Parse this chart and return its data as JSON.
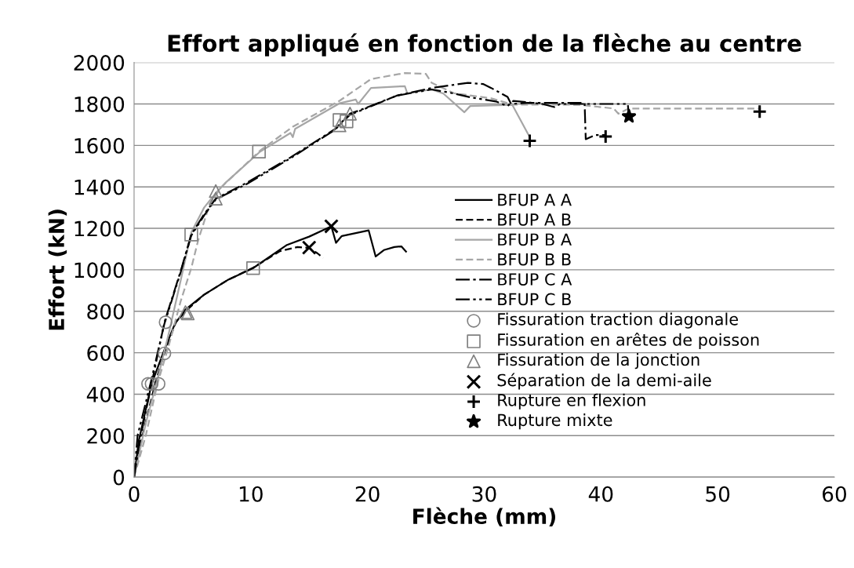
{
  "chart_data": {
    "type": "line",
    "title": "Effort appliqué en fonction de la flèche au centre",
    "xlabel": "Flèche (mm)",
    "ylabel": "Effort (kN)",
    "xlim": [
      0,
      60
    ],
    "xticks": [
      0,
      10,
      20,
      30,
      40,
      50,
      60
    ],
    "ylim": [
      0,
      2000
    ],
    "yticks": [
      0,
      200,
      400,
      600,
      800,
      1000,
      1200,
      1400,
      1600,
      1800,
      2000
    ],
    "grid": "y",
    "legend": "right",
    "marker": "none",
    "series": [
      {
        "name": "BFUP A A",
        "color": "#000000",
        "line_style": "solid",
        "x": [
          0,
          0.4,
          1.5,
          2.5,
          3.5,
          4.4,
          6,
          8,
          10.2,
          13.1,
          15,
          16.9,
          17.3,
          17.8,
          20.1,
          20.7,
          21.4,
          22.3,
          22.9,
          23.3
        ],
        "values": [
          0,
          175,
          450,
          600,
          740,
          808,
          880,
          950,
          1008,
          1120,
          1160,
          1210,
          1130,
          1163,
          1190,
          1064,
          1095,
          1110,
          1113,
          1088
        ]
      },
      {
        "name": "BFUP A B",
        "color": "#000000",
        "line_style": "dashed",
        "x": [
          0,
          0.5,
          1.8,
          2.6,
          3.6,
          4.6,
          6,
          8,
          10.2,
          12.5,
          14,
          15,
          15.7,
          16.2
        ],
        "values": [
          0,
          150,
          450,
          600,
          750,
          810,
          880,
          950,
          1010,
          1090,
          1110,
          1105,
          1080,
          1057
        ]
      },
      {
        "name": "BFUP B A",
        "color": "#a6a6a6",
        "line_style": "solid",
        "x": [
          0,
          1,
          2,
          3,
          4,
          4.9,
          6,
          7,
          7.8,
          10.8,
          13.4,
          13.6,
          13.8,
          17.6,
          19,
          19.2,
          20.3,
          23.2,
          23.4,
          25.5,
          26.5,
          28.3,
          28.8,
          32.4,
          33.9
        ],
        "values": [
          0,
          260,
          470,
          700,
          950,
          1180,
          1300,
          1370,
          1418,
          1570,
          1660,
          1640,
          1680,
          1803,
          1821,
          1800,
          1877,
          1886,
          1852,
          1870,
          1850,
          1760,
          1790,
          1796,
          1640
        ]
      },
      {
        "name": "BFUP B B",
        "color": "#a6a6a6",
        "line_style": "dashed",
        "x": [
          0,
          1,
          2,
          3,
          4,
          4.9,
          5.5,
          6.5,
          7.5,
          10.8,
          13.6,
          17.6,
          20.3,
          23.2,
          25,
          25.5,
          27.4,
          30.6,
          32.4,
          38.2,
          41.1,
          41.5,
          42.4,
          53.7
        ],
        "values": [
          0,
          200,
          450,
          640,
          850,
          1008,
          1144,
          1320,
          1400,
          1575,
          1690,
          1815,
          1920,
          1949,
          1945,
          1902,
          1852,
          1827,
          1797,
          1796,
          1778,
          1753,
          1778,
          1778
        ]
      },
      {
        "name": "BFUP C A",
        "color": "#000000",
        "line_style": "dashdot",
        "x": [
          0,
          0.5,
          1.5,
          2.6,
          4,
          4.9,
          6,
          7,
          9.6,
          13.4,
          17.2,
          18.5,
          19.4,
          22.5,
          25.5,
          28.6,
          29.9,
          30.6,
          32,
          32.3,
          33.7,
          38.6,
          38.7,
          39.5,
          40.4
        ],
        "values": [
          0,
          180,
          450,
          747,
          995,
          1170,
          1268,
          1343,
          1418,
          1542,
          1678,
          1753,
          1771,
          1840,
          1877,
          1902,
          1896,
          1877,
          1834,
          1800,
          1805,
          1805,
          1630,
          1650,
          1650
        ]
      },
      {
        "name": "BFUP C B",
        "color": "#000000",
        "line_style": "dashdotdot",
        "x": [
          0,
          0.3,
          1.4,
          2.6,
          4,
          4.9,
          6,
          7,
          9.6,
          13.4,
          17.2,
          18.5,
          19.4,
          22.5,
          23.5,
          25.5,
          27,
          29,
          31,
          32,
          32.5,
          35,
          36,
          36.5,
          42.3,
          42.4
        ],
        "values": [
          0,
          200,
          450,
          740,
          990,
          1165,
          1262,
          1340,
          1412,
          1538,
          1675,
          1748,
          1768,
          1840,
          1850,
          1870,
          1855,
          1830,
          1812,
          1790,
          1815,
          1800,
          1785,
          1800,
          1800,
          1740
        ]
      },
      {
        "name": "Fissuration traction diagonale",
        "type": "scatter",
        "marker": "circle",
        "color": "#808080",
        "x": [
          1.2,
          1.5,
          2.1,
          2.6,
          2.7
        ],
        "values": [
          450,
          450,
          450,
          597,
          747
        ]
      },
      {
        "name": "Fissuration en arêtes de poisson",
        "type": "scatter",
        "marker": "square",
        "color": "#808080",
        "x": [
          4.9,
          10.2,
          10.7,
          17.6,
          18.2
        ],
        "values": [
          1170,
          1008,
          1570,
          1722,
          1716
        ]
      },
      {
        "name": "Fissuration de la jonction",
        "type": "scatter",
        "marker": "triangle",
        "color": "#808080",
        "x": [
          4.4,
          4.6,
          7.0,
          7.0,
          17.6,
          18.5
        ],
        "values": [
          796,
          790,
          1380,
          1343,
          1697,
          1753
        ]
      },
      {
        "name": "Séparation de la demi-aile",
        "type": "scatter",
        "marker": "cross",
        "color": "#000000",
        "x": [
          15.0,
          16.9
        ],
        "values": [
          1107,
          1210
        ]
      },
      {
        "name": "Rupture en flexion",
        "type": "scatter",
        "marker": "plus",
        "color": "#000000",
        "x": [
          33.9,
          40.4,
          53.6
        ],
        "values": [
          1622,
          1643,
          1763
        ]
      },
      {
        "name": "Rupture mixte",
        "type": "scatter",
        "marker": "star",
        "color": "#000000",
        "x": [
          42.4
        ],
        "values": [
          1740
        ]
      }
    ]
  }
}
